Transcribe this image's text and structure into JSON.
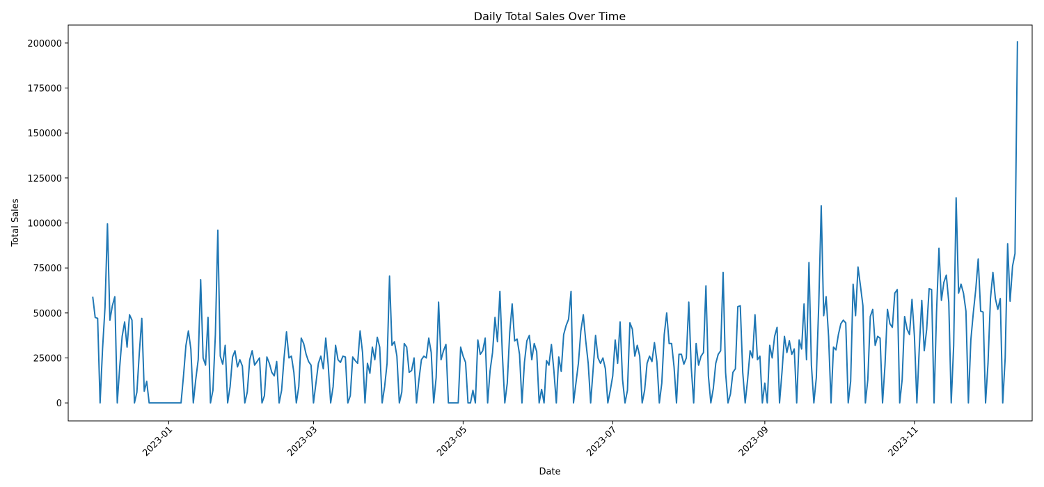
{
  "chart_data": {
    "type": "line",
    "title": "Daily Total Sales Over Time",
    "xlabel": "Date",
    "ylabel": "Total Sales",
    "xlim": [
      "2022-11-21",
      "2023-12-19"
    ],
    "ylim": [
      -10000,
      210000
    ],
    "grid": false,
    "legend": "none",
    "line_color": "#1f77b4",
    "x_ticks": [
      "2023-01-01",
      "2023-03-01",
      "2023-05-01",
      "2023-07-01",
      "2023-09-01",
      "2023-11-01"
    ],
    "x_tick_labels": [
      "2023-01",
      "2023-03",
      "2023-05",
      "2023-07",
      "2023-09",
      "2023-11"
    ],
    "y_ticks": [
      0,
      25000,
      50000,
      75000,
      100000,
      125000,
      150000,
      175000,
      200000
    ],
    "y_tick_labels": [
      "0",
      "25000",
      "50000",
      "75000",
      "100000",
      "125000",
      "150000",
      "175000",
      "200000"
    ],
    "series": [
      {
        "x_start": "2022-12-01",
        "x_step_days": 1,
        "values": [
          59000,
          47500,
          47000,
          0,
          30000,
          53000,
          99500,
          46000,
          54000,
          59000,
          0,
          20000,
          37000,
          45000,
          31000,
          49000,
          46000,
          0,
          6000,
          28000,
          47000,
          6500,
          12000,
          0,
          0,
          0,
          0,
          0,
          0,
          0,
          0,
          0,
          0,
          0,
          0,
          0,
          0,
          15000,
          32000,
          40000,
          30000,
          0,
          13000,
          24000,
          68500,
          25000,
          21000,
          47500,
          0,
          7000,
          38000,
          96000,
          26000,
          21500,
          32000,
          0,
          9000,
          25500,
          29000,
          20000,
          24000,
          20500,
          0,
          6000,
          24000,
          29000,
          21000,
          23000,
          25000,
          0,
          4000,
          25500,
          22000,
          17000,
          15000,
          23000,
          0,
          7000,
          25000,
          39500,
          25000,
          26000,
          17000,
          0,
          9000,
          36000,
          33000,
          27000,
          23000,
          21000,
          0,
          11000,
          22000,
          26000,
          19000,
          36000,
          21000,
          0,
          9000,
          32000,
          24000,
          22500,
          26000,
          25500,
          0,
          4000,
          25500,
          23500,
          22000,
          40000,
          28000,
          0,
          22000,
          16500,
          31000,
          24000,
          36500,
          31000,
          0,
          9000,
          22000,
          70500,
          32000,
          34000,
          26000,
          0,
          6000,
          33000,
          31000,
          17000,
          18000,
          25000,
          0,
          13000,
          24000,
          26000,
          25000,
          36000,
          28000,
          0,
          14000,
          56000,
          24000,
          29000,
          32500,
          0,
          0,
          0,
          0,
          0,
          31000,
          26000,
          22500,
          0,
          0,
          7000,
          0,
          35000,
          27000,
          29000,
          36000,
          0,
          18000,
          28000,
          47500,
          34000,
          62000,
          27000,
          0,
          11000,
          39000,
          55000,
          34500,
          35500,
          27000,
          0,
          22500,
          34500,
          37500,
          24000,
          33000,
          28500,
          0,
          7500,
          0,
          23500,
          21000,
          32500,
          18000,
          0,
          25500,
          17500,
          38000,
          43000,
          46500,
          62000,
          0,
          11000,
          22000,
          40000,
          49000,
          34500,
          22000,
          0,
          18500,
          37500,
          25000,
          22000,
          25000,
          19000,
          0,
          7000,
          15000,
          35000,
          22000,
          45000,
          13000,
          0,
          7000,
          44500,
          41000,
          26000,
          32000,
          26000,
          0,
          7000,
          22000,
          26000,
          23000,
          33500,
          23000,
          0,
          11000,
          38000,
          50000,
          33000,
          33000,
          20000,
          0,
          27000,
          27000,
          21500,
          25000,
          56000,
          20000,
          0,
          33000,
          21000,
          26000,
          28000,
          65000,
          15000,
          0,
          8000,
          22000,
          27000,
          29000,
          72500,
          17000,
          0,
          5000,
          17000,
          19000,
          53500,
          54000,
          17000,
          0,
          13000,
          29000,
          25000,
          49000,
          24000,
          26000,
          0,
          11000,
          0,
          32000,
          25000,
          37000,
          42000,
          0,
          17000,
          37000,
          28000,
          34500,
          27000,
          30000,
          0,
          35000,
          30000,
          55000,
          24000,
          78000,
          21000,
          0,
          14000,
          55000,
          109500,
          48500,
          59000,
          37000,
          0,
          31000,
          29500,
          38000,
          44000,
          46000,
          44500,
          0,
          12000,
          66000,
          48500,
          75500,
          65000,
          54000,
          0,
          13000,
          48000,
          52000,
          32000,
          37000,
          36000,
          0,
          21000,
          52000,
          44000,
          42000,
          61000,
          63000,
          0,
          13000,
          48000,
          41000,
          38000,
          57500,
          37000,
          0,
          31000,
          57000,
          29000,
          41000,
          63500,
          63000,
          0,
          50000,
          86000,
          57000,
          67000,
          71000,
          56000,
          0,
          32000,
          114000,
          61000,
          66000,
          61000,
          51000,
          0,
          35000,
          50000,
          63000,
          80000,
          51000,
          50500,
          0,
          22000,
          58000,
          72500,
          58000,
          52000,
          58000,
          0,
          25000,
          88500,
          56500,
          76000,
          83000,
          201000
        ]
      }
    ]
  }
}
